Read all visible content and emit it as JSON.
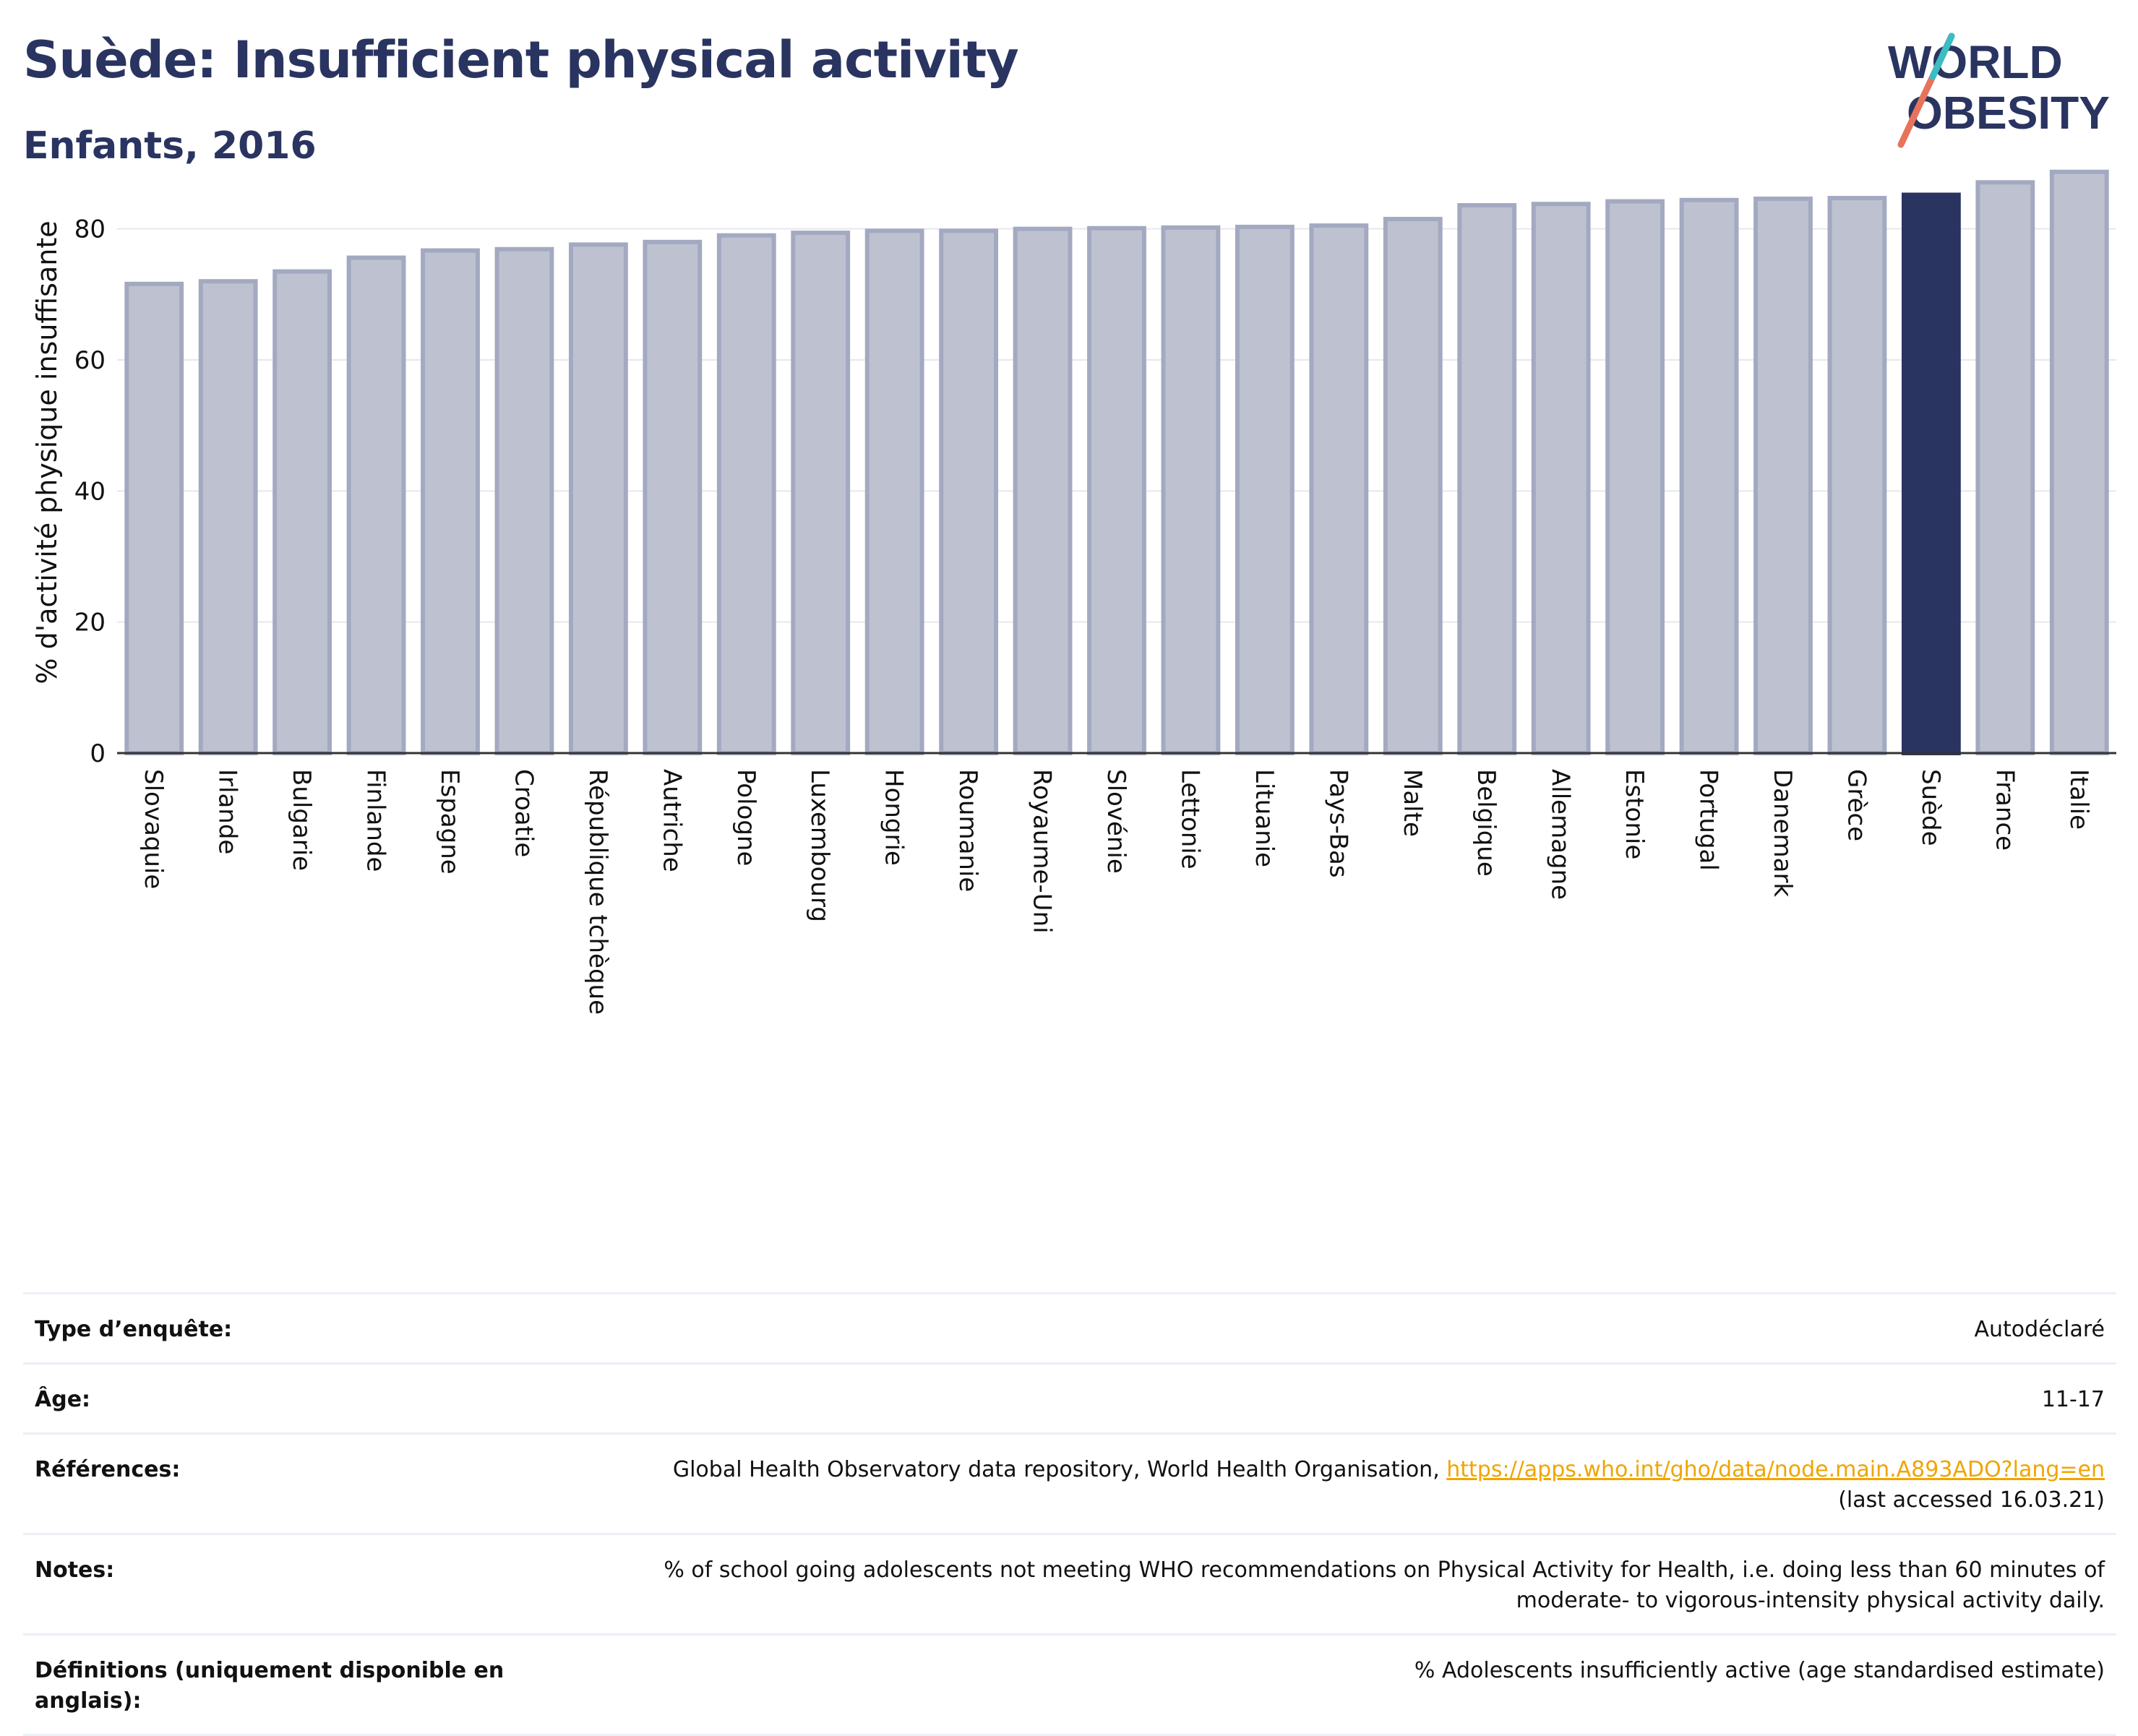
{
  "header": {
    "title": "Suède: Insufficient physical activity",
    "subtitle": "Enfants, 2016",
    "logo_text": "WORLD OBESITY"
  },
  "colors": {
    "highlight": "#2a3461",
    "bar_fill": "#bec2d0",
    "bar_stroke": "#a3a9c0",
    "title": "#2a3461",
    "link": "#f0a500"
  },
  "chart_data": {
    "type": "bar",
    "title": "",
    "ylabel": "% d'activité physique insuffisante",
    "xlabel": "",
    "ylim": [
      0,
      90
    ],
    "yticks": [
      0,
      20,
      40,
      60,
      80
    ],
    "grid": true,
    "highlight": "Suède",
    "categories": [
      "Slovaquie",
      "Irlande",
      "Bulgarie",
      "Finlande",
      "Espagne",
      "Croatie",
      "République tchèque",
      "Autriche",
      "Pologne",
      "Luxembourg",
      "Hongrie",
      "Roumanie",
      "Royaume-Uni",
      "Slovénie",
      "Lettonie",
      "Lituanie",
      "Pays-Bas",
      "Malte",
      "Belgique",
      "Allemagne",
      "Estonie",
      "Portugal",
      "Danemark",
      "Grèce",
      "Suède",
      "France",
      "Italie"
    ],
    "values": [
      71.6,
      72.0,
      73.5,
      75.6,
      76.7,
      76.9,
      77.6,
      78.0,
      79.0,
      79.4,
      79.7,
      79.7,
      80.0,
      80.1,
      80.2,
      80.3,
      80.5,
      81.5,
      83.6,
      83.8,
      84.2,
      84.4,
      84.6,
      84.7,
      85.2,
      87.1,
      88.7
    ]
  },
  "meta": {
    "survey_label": "Type d’enquête:",
    "survey_value": "Autodéclaré",
    "age_label": "Âge:",
    "age_value": "11-17",
    "refs_label": "Références:",
    "refs_text": "Global Health Observatory data repository, World Health Organisation, ",
    "refs_link": "https://apps.who.int/gho/data/node.main.A893ADO?lang=en",
    "refs_accessed": "(last accessed 16.03.21)",
    "notes_label": "Notes:",
    "notes_value": "% of school going adolescents not meeting WHO recommendations on Physical Activity for Health, i.e. doing less than 60 minutes of moderate- to vigorous-intensity physical activity daily.",
    "defs_label": "Définitions (uniquement disponible en anglais):",
    "defs_value": "% Adolescents insufficiently active (age standardised estimate)"
  }
}
